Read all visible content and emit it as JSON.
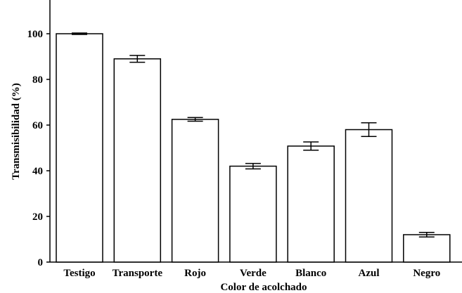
{
  "chart_data": {
    "type": "bar",
    "title": "",
    "xlabel": "Color de acolchado",
    "ylabel": "Transmisibilidad (%)",
    "ylim": [
      0,
      115
    ],
    "yticks": [
      0,
      20,
      40,
      60,
      80,
      100
    ],
    "ytick_labels": [
      "0",
      "20",
      "40",
      "60",
      "80",
      "100"
    ],
    "grid": false,
    "legend": "none",
    "categories": [
      "Testigo",
      "Transporte",
      "Rojo",
      "Verde",
      "Blanco",
      "Azul",
      "Negro"
    ],
    "values": [
      100,
      89,
      62.5,
      42,
      50.8,
      58,
      12
    ],
    "error": [
      0.3,
      1.5,
      0.8,
      1.2,
      1.8,
      3.0,
      1.0
    ],
    "bar_fill": "#ffffff",
    "bar_stroke": "#000000"
  }
}
